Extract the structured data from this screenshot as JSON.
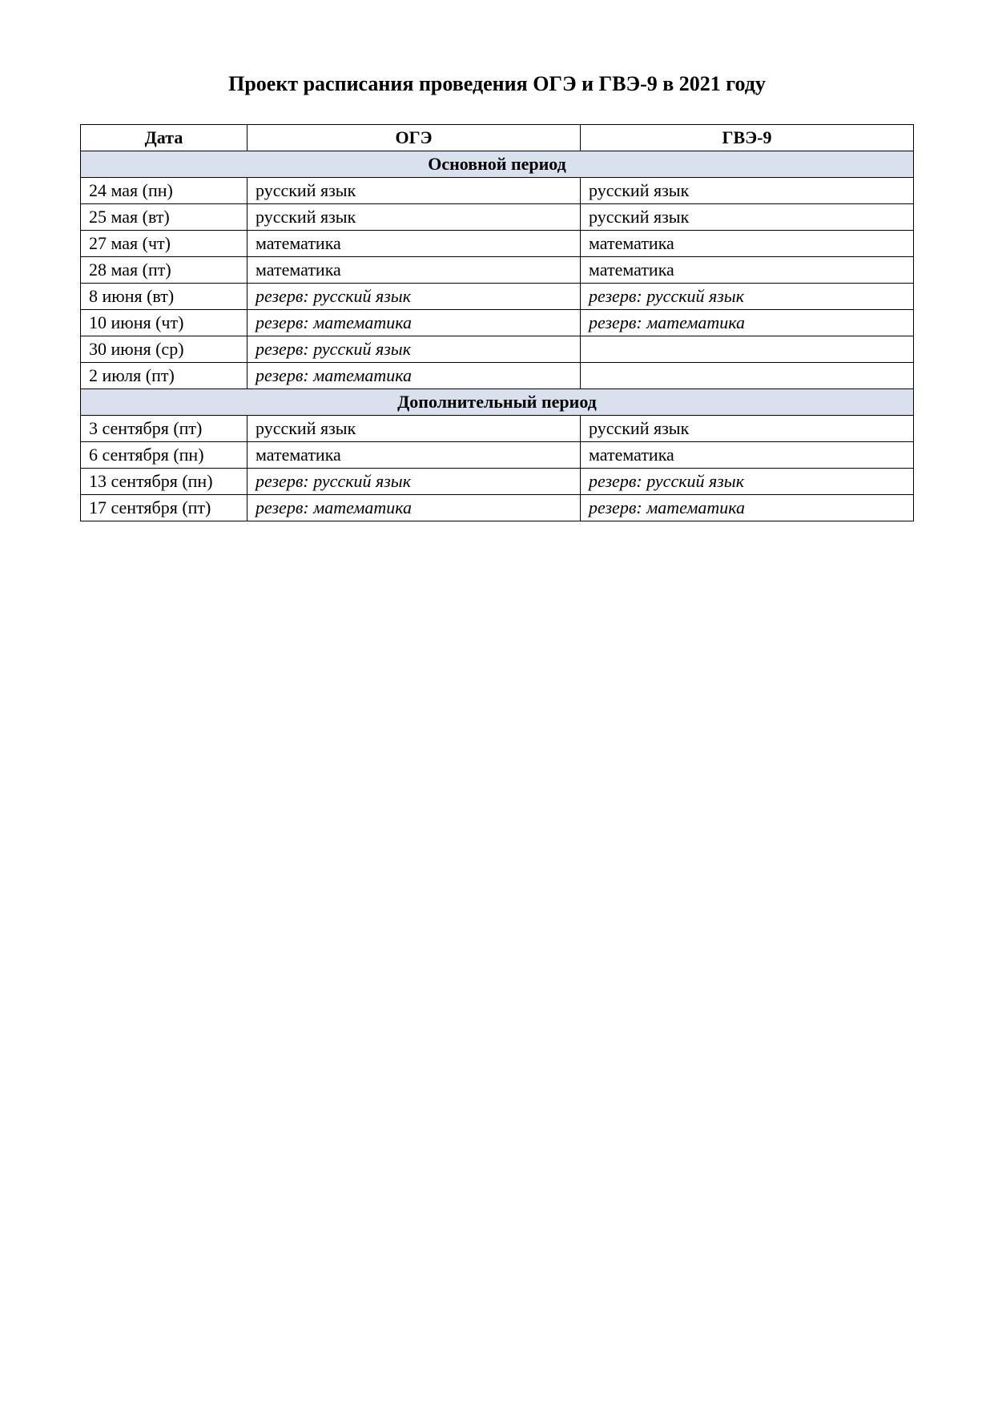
{
  "title": "Проект расписания проведения ОГЭ и ГВЭ-9 в 2021 году",
  "table": {
    "headers": {
      "date": "Дата",
      "oge": "ОГЭ",
      "gve": "ГВЭ-9"
    },
    "sections": [
      {
        "title": "Основной период",
        "rows": [
          {
            "date": "24 мая (пн)",
            "oge": "русский язык",
            "gve": "русский язык",
            "oge_italic": false,
            "gve_italic": false
          },
          {
            "date": "25 мая (вт)",
            "oge": "русский язык",
            "gve": "русский язык",
            "oge_italic": false,
            "gve_italic": false
          },
          {
            "date": "27 мая (чт)",
            "oge": "математика",
            "gve": "математика",
            "oge_italic": false,
            "gve_italic": false
          },
          {
            "date": "28 мая (пт)",
            "oge": "математика",
            "gve": "математика",
            "oge_italic": false,
            "gve_italic": false
          },
          {
            "date": "8 июня (вт)",
            "oge": "резерв: русский язык",
            "gve": "резерв: русский язык",
            "oge_italic": true,
            "gve_italic": true
          },
          {
            "date": "10 июня (чт)",
            "oge": "резерв: математика",
            "gve": "резерв: математика",
            "oge_italic": true,
            "gve_italic": true
          },
          {
            "date": "30 июня (ср)",
            "oge": "резерв: русский язык",
            "gve": "",
            "oge_italic": true,
            "gve_italic": false
          },
          {
            "date": "2 июля (пт)",
            "oge": "резерв: математика",
            "gve": "",
            "oge_italic": true,
            "gve_italic": false
          }
        ]
      },
      {
        "title": "Дополнительный период",
        "rows": [
          {
            "date": "3 сентября (пт)",
            "oge": "русский язык",
            "gve": "русский язык",
            "oge_italic": false,
            "gve_italic": false
          },
          {
            "date": "6 сентября (пн)",
            "oge": "математика",
            "gve": "математика",
            "oge_italic": false,
            "gve_italic": false
          },
          {
            "date": "13 сентября (пн)",
            "oge": "резерв: русский язык",
            "gve": "резерв: русский язык",
            "oge_italic": true,
            "gve_italic": true
          },
          {
            "date": "17 сентября (пт)",
            "oge": "резерв: математика",
            "gve": "резерв: математика",
            "oge_italic": true,
            "gve_italic": true
          }
        ]
      }
    ]
  }
}
